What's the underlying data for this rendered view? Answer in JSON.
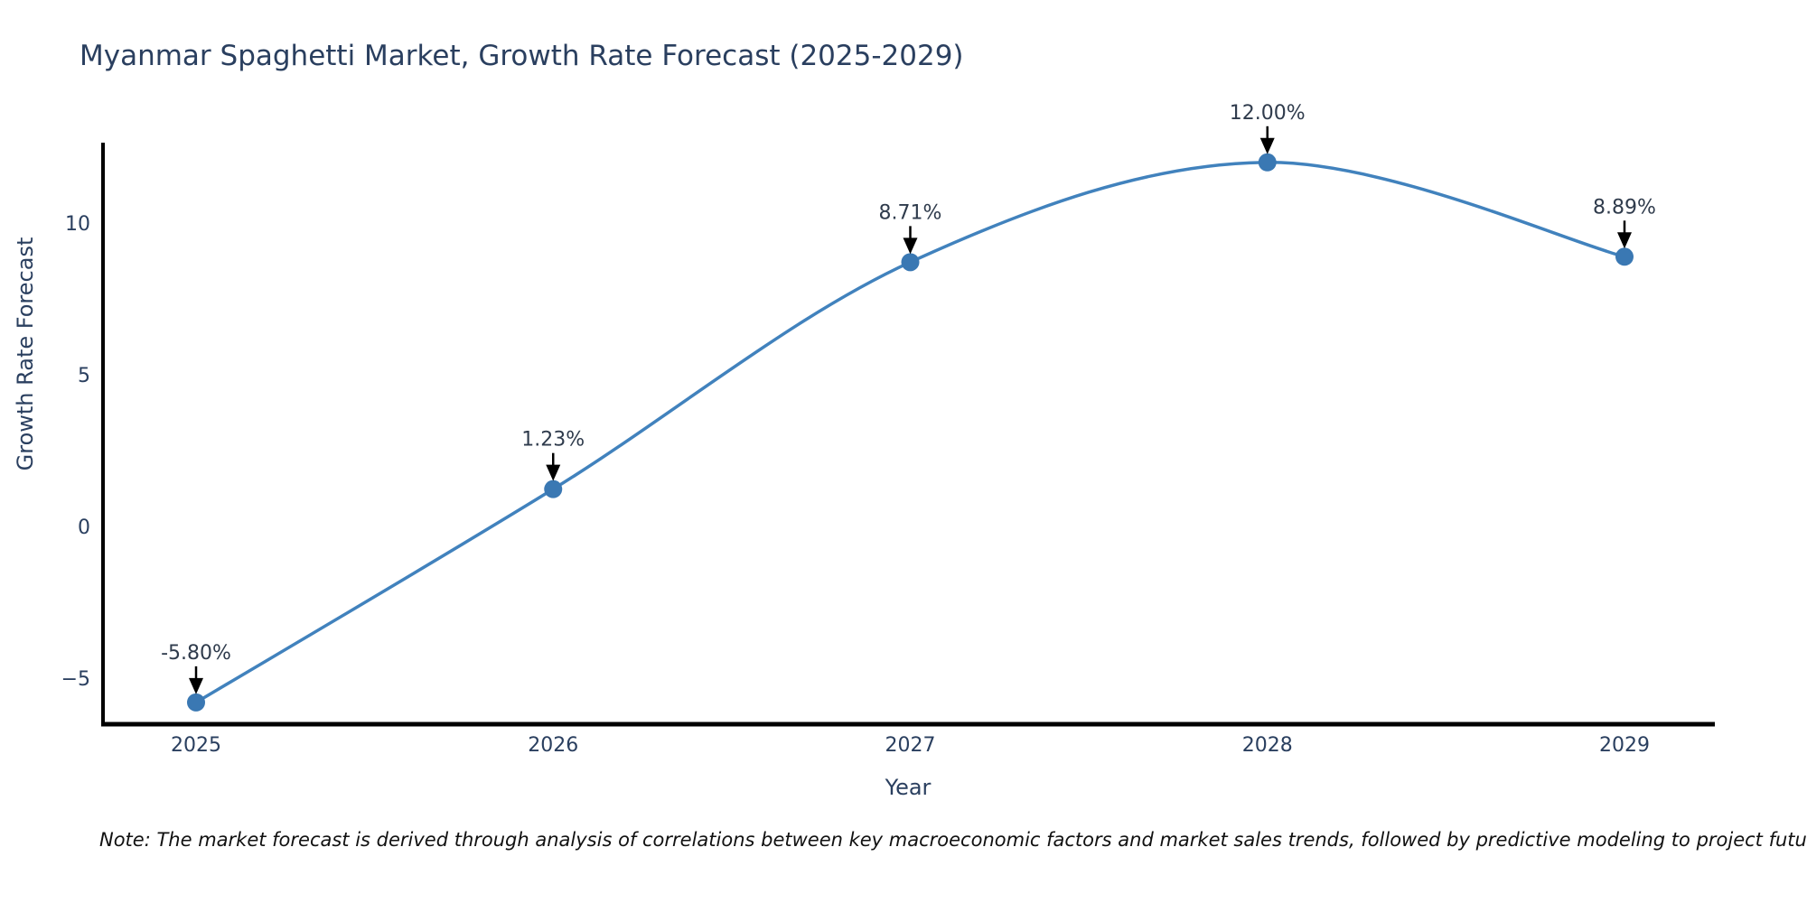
{
  "title": "Myanmar Spaghetti Market, Growth Rate Forecast (2025-2029)",
  "note": "Note: The market forecast is derived through analysis of correlations between key macroeconomic factors and market sales trends, followed by predictive modeling to project future sales",
  "chart_data": {
    "type": "line",
    "title": "Myanmar Spaghetti Market, Growth Rate Forecast (2025-2029)",
    "xlabel": "Year",
    "ylabel": "Growth Rate Forecast",
    "x": [
      2025,
      2026,
      2027,
      2028,
      2029
    ],
    "x_tick_labels": [
      "2025",
      "2026",
      "2027",
      "2028",
      "2029"
    ],
    "series": [
      {
        "name": "Growth Rate Forecast",
        "values": [
          -5.8,
          1.23,
          8.71,
          12.0,
          8.89
        ]
      }
    ],
    "point_labels": [
      "-5.80%",
      "1.23%",
      "8.71%",
      "12.00%",
      "8.89%"
    ],
    "y_ticks": [
      10,
      5,
      0,
      -5
    ],
    "y_tick_labels": [
      "10",
      "5",
      "0",
      "−5"
    ],
    "ylim": [
      -6.5,
      12.6
    ],
    "grid": false,
    "legend": "none",
    "line_shape": "spline",
    "marker_style": "circle",
    "annotation_arrows": true,
    "colors": {
      "line": "#4182bd",
      "marker": "#3a78b3",
      "arrow": "#000000",
      "axis_line": "#000000",
      "title_text": "#2a3f5f",
      "axis_text": "#2a3f5f",
      "annotation_text": "#2f3b4c",
      "background": "#ffffff"
    }
  }
}
